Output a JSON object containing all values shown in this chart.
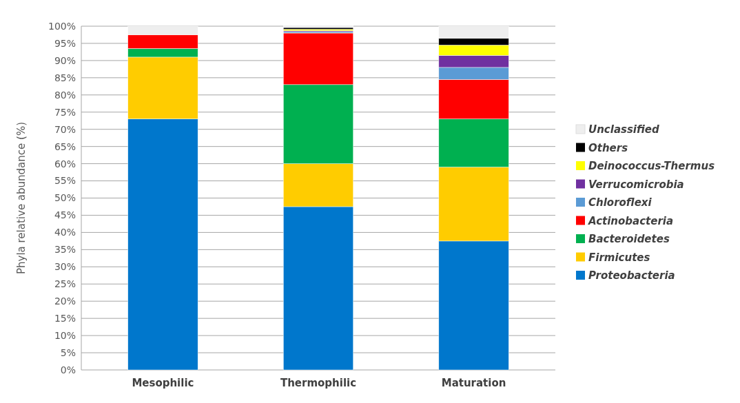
{
  "chart_data": {
    "type": "bar",
    "stacked": true,
    "ylabel": "Phyla relative abundance (%)",
    "categories": [
      "Mesophilic",
      "Thermophilic",
      "Maturation"
    ],
    "series": [
      {
        "name": "Proteobacteria",
        "color": "#0077cc",
        "values": [
          73,
          47.5,
          37.5
        ]
      },
      {
        "name": "Firmicutes",
        "color": "#ffcc00",
        "values": [
          18,
          12.5,
          21.5
        ]
      },
      {
        "name": "Bacteroidetes",
        "color": "#00b050",
        "values": [
          2.5,
          23,
          14
        ]
      },
      {
        "name": "Actinobacteria",
        "color": "#ff0000",
        "values": [
          4,
          15,
          11.5
        ]
      },
      {
        "name": "Chloroflexi",
        "color": "#5b9bd5",
        "values": [
          0,
          0.4,
          3.5
        ]
      },
      {
        "name": "Verrucomicrobia",
        "color": "#7030a0",
        "values": [
          0,
          0.3,
          3.5
        ]
      },
      {
        "name": "Deinococcus-Thermus",
        "color": "#ffff00",
        "values": [
          0,
          0.4,
          3
        ]
      },
      {
        "name": "Others",
        "color": "#000000",
        "values": [
          0,
          0.5,
          2
        ]
      },
      {
        "name": "Unclassified",
        "color": "#eeeeee",
        "values": [
          2.5,
          0.5,
          3.5
        ]
      }
    ],
    "ylim": [
      0,
      100
    ],
    "yticks": [
      {
        "value": 0,
        "label": "0%"
      },
      {
        "value": 5,
        "label": "5%"
      },
      {
        "value": 10,
        "label": "10%"
      },
      {
        "value": 15,
        "label": "15%"
      },
      {
        "value": 20,
        "label": "20%"
      },
      {
        "value": 25,
        "label": "25%"
      },
      {
        "value": 30,
        "label": "30%"
      },
      {
        "value": 35,
        "label": "35%"
      },
      {
        "value": 40,
        "label": "40%"
      },
      {
        "value": 45,
        "label": "45%"
      },
      {
        "value": 50,
        "label": "50%"
      },
      {
        "value": 55,
        "label": "55%"
      },
      {
        "value": 60,
        "label": "60%"
      },
      {
        "value": 65,
        "label": "65%"
      },
      {
        "value": 70,
        "label": "70%"
      },
      {
        "value": 75,
        "label": "75%"
      },
      {
        "value": 80,
        "label": "80%"
      },
      {
        "value": 85,
        "label": "85%"
      },
      {
        "value": 90,
        "label": "90%"
      },
      {
        "value": 95,
        "label": "95%"
      },
      {
        "value": 100,
        "label": "100%"
      }
    ],
    "grid": "y",
    "legend": "right"
  }
}
